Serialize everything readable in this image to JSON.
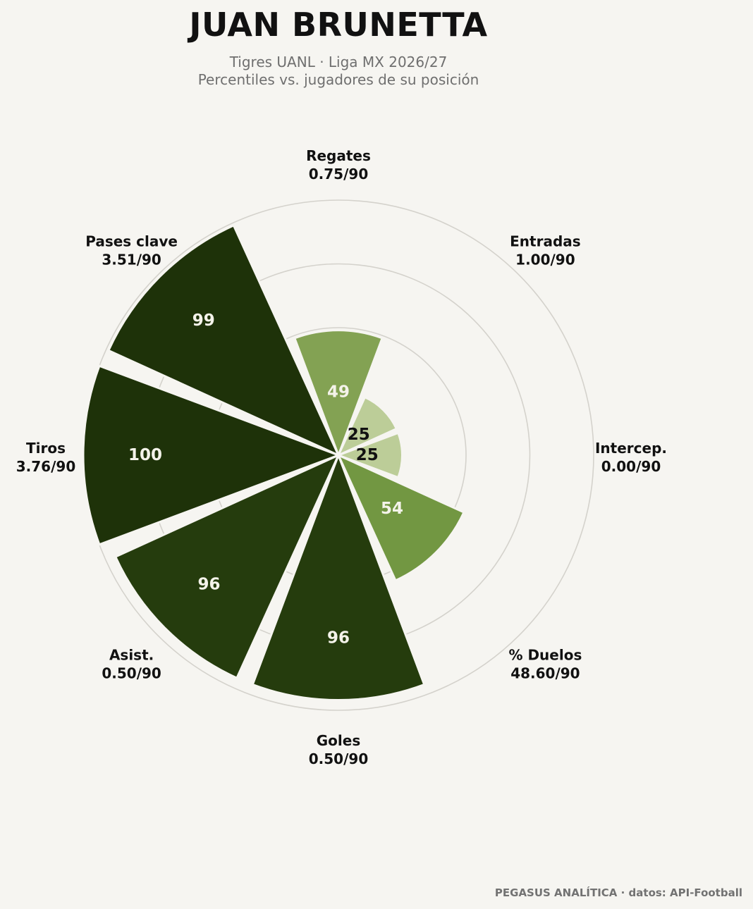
{
  "header": {
    "title": "JUAN BRUNETTA",
    "subtitle_line1": "Tigres UANL · Liga MX 2026/27",
    "subtitle_line2": "Percentiles vs. jugadores de su posición"
  },
  "footer": {
    "credit": "PEGASUS ANALÍTICA · datos: API-Football"
  },
  "colors": {
    "background": "#f6f5f1",
    "grid": "#d4d2cc",
    "tier_top": "#1e3209",
    "tier_high": "#253c0d",
    "tier_mid_high": "#729742",
    "tier_mid": "#83a253",
    "tier_low": "#bccd98",
    "label_light": "#f4f3ea",
    "label_dark": "#111111"
  },
  "chart_data": {
    "type": "polar-bar",
    "title": "JUAN BRUNETTA",
    "subtitle": "Tigres UANL · Liga MX 2026/27 · Percentiles vs. jugadores de su posición",
    "radial_range": [
      0,
      100
    ],
    "grid": true,
    "categories": [
      "Regates",
      "Entradas",
      "Intercep.",
      "% Duelos",
      "Goles",
      "Asist.",
      "Tiros",
      "Pases clave"
    ],
    "per90_labels": [
      "0.75/90",
      "1.00/90",
      "0.00/90",
      "48.60/90",
      "0.50/90",
      "0.50/90",
      "3.76/90",
      "3.51/90"
    ],
    "percentiles": [
      49,
      25,
      25,
      54,
      96,
      96,
      100,
      99
    ],
    "per90_values": [
      0.75,
      1.0,
      0.0,
      48.6,
      0.5,
      0.5,
      3.76,
      3.51
    ]
  }
}
